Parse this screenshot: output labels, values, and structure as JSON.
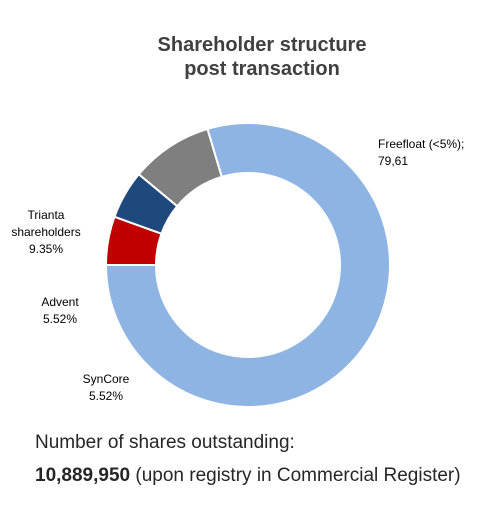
{
  "chart_data": {
    "type": "pie",
    "title": [
      "Shareholder structure",
      "post transaction"
    ],
    "hole": "donut",
    "slices": [
      {
        "name": "Freefloat (<5%)",
        "value": 79.61,
        "label_lines": [
          "Freefloat (<5%);",
          "79,61"
        ],
        "color": "#8EB4E3"
      },
      {
        "name": "SynCore",
        "value": 5.52,
        "label_lines": [
          "SynCore",
          "5.52%"
        ],
        "color": "#C00000"
      },
      {
        "name": "Advent",
        "value": 5.52,
        "label_lines": [
          "Advent",
          "5.52%"
        ],
        "color": "#1F497D"
      },
      {
        "name": "Trianta shareholders",
        "value": 9.35,
        "label_lines": [
          "Trianta",
          "shareholders",
          "9.35%"
        ],
        "color": "#7F7F7F"
      }
    ]
  },
  "footer": {
    "heading": "Number of shares outstanding:",
    "count": "10,889,950",
    "note": " (upon registry in Commercial Register)"
  }
}
